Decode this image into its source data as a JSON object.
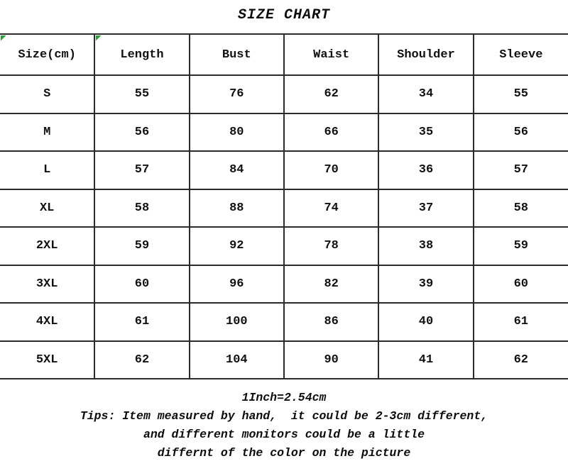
{
  "title": "SIZE CHART",
  "table": {
    "headers": [
      "Size(cm)",
      "Length",
      "Bust",
      "Waist",
      "Shoulder",
      "Sleeve"
    ],
    "rows": [
      {
        "size": "S",
        "values": [
          "55",
          "76",
          "62",
          "34",
          "55"
        ]
      },
      {
        "size": "M",
        "values": [
          "56",
          "80",
          "66",
          "35",
          "56"
        ]
      },
      {
        "size": "L",
        "values": [
          "57",
          "84",
          "70",
          "36",
          "57"
        ]
      },
      {
        "size": "XL",
        "values": [
          "58",
          "88",
          "74",
          "37",
          "58"
        ]
      },
      {
        "size": "2XL",
        "values": [
          "59",
          "92",
          "78",
          "38",
          "59"
        ]
      },
      {
        "size": "3XL",
        "values": [
          "60",
          "96",
          "82",
          "39",
          "60"
        ]
      },
      {
        "size": "4XL",
        "values": [
          "61",
          "100",
          "86",
          "40",
          "61"
        ]
      },
      {
        "size": "5XL",
        "values": [
          "62",
          "104",
          "90",
          "41",
          "62"
        ]
      }
    ]
  },
  "footer": {
    "conversion": "1Inch=2.54cm",
    "tips_line1": "Tips: Item measured by hand,  it could be 2-3cm different,",
    "tips_line2": "and different monitors could be a little",
    "tips_line3": "differnt of the color on the picture"
  },
  "colors": {
    "background": "#ffffff",
    "border": "#2b2b2b",
    "text": "#111111",
    "corner_marker_green": "#2e9e3c"
  },
  "chart_data": {
    "type": "table",
    "title": "SIZE CHART",
    "unit": "cm",
    "columns": [
      "Size(cm)",
      "Length",
      "Bust",
      "Waist",
      "Shoulder",
      "Sleeve"
    ],
    "rows": [
      [
        "S",
        55,
        76,
        62,
        34,
        55
      ],
      [
        "M",
        56,
        80,
        66,
        35,
        56
      ],
      [
        "L",
        57,
        84,
        70,
        36,
        57
      ],
      [
        "XL",
        58,
        88,
        74,
        37,
        58
      ],
      [
        "2XL",
        59,
        92,
        78,
        38,
        59
      ],
      [
        "3XL",
        60,
        96,
        82,
        39,
        60
      ],
      [
        "4XL",
        61,
        100,
        86,
        40,
        61
      ],
      [
        "5XL",
        62,
        104,
        90,
        41,
        62
      ]
    ],
    "notes": [
      "1Inch=2.54cm",
      "Tips: Item measured by hand, it could be 2-3cm different, and different monitors could be a little differnt of the color on the picture"
    ]
  }
}
